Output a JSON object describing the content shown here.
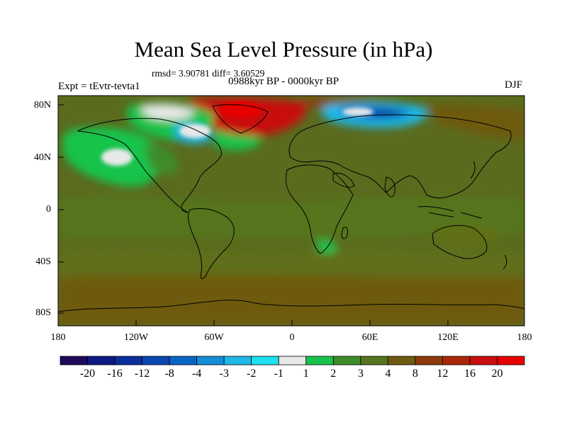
{
  "map": {
    "title": "Mean Sea Level Pressure (in hPa)",
    "stats": "rmsd= 3.90781 diff= 3.60529",
    "period": "0988kyr BP - 0000kyr BP",
    "expt": "Expt = tEvtr-tevta1",
    "season": "DJF",
    "lat_ticks": [
      "80N",
      "40N",
      "0",
      "40S",
      "80S"
    ],
    "lon_ticks": [
      "180",
      "120W",
      "60W",
      "0",
      "60E",
      "120E",
      "180"
    ],
    "background_color": "#5a6b1e"
  },
  "colorbar": {
    "labels": [
      "-20",
      "-16",
      "-12",
      "-8",
      "-4",
      "-3",
      "-2",
      "-1",
      "1",
      "2",
      "3",
      "4",
      "8",
      "12",
      "16",
      "20"
    ],
    "colors": [
      "#1e0a5a",
      "#0c1a82",
      "#0a2f9c",
      "#0a47b2",
      "#0a66c4",
      "#148ed4",
      "#1eb8e6",
      "#1ee0ee",
      "#e8e8e8",
      "#19c34b",
      "#3c8c2a",
      "#55761e",
      "#6e5a10",
      "#8c3c0a",
      "#aa2808",
      "#c80e0e",
      "#e60000"
    ]
  }
}
